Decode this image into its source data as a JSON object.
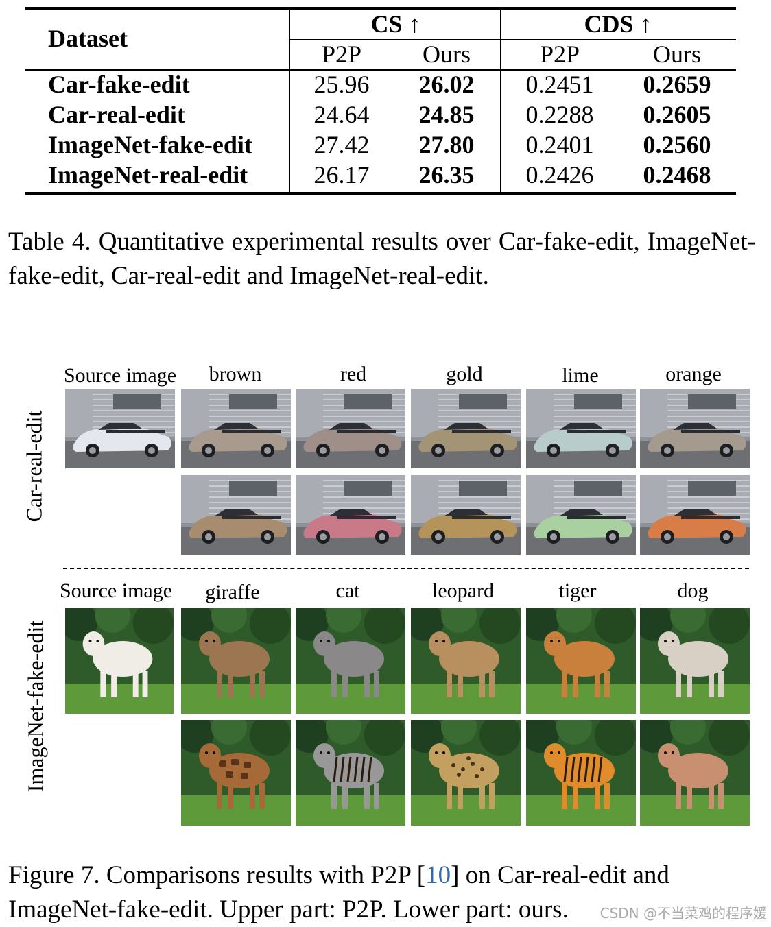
{
  "table": {
    "header_dataset": "Dataset",
    "group_cs": "CS ↑",
    "group_cds": "CDS ↑",
    "sub_p2p": "P2P",
    "sub_ours": "Ours",
    "rows": [
      {
        "dataset": "Car-fake-edit",
        "cs_p2p": "25.96",
        "cs_ours": "26.02",
        "cds_p2p": "0.2451",
        "cds_ours": "0.2659"
      },
      {
        "dataset": "Car-real-edit",
        "cs_p2p": "24.64",
        "cs_ours": "24.85",
        "cds_p2p": "0.2288",
        "cds_ours": "0.2605"
      },
      {
        "dataset": "ImageNet-fake-edit",
        "cs_p2p": "27.42",
        "cs_ours": "27.80",
        "cds_p2p": "0.2401",
        "cds_ours": "0.2560"
      },
      {
        "dataset": "ImageNet-real-edit",
        "cs_p2p": "26.17",
        "cs_ours": "26.35",
        "cds_p2p": "0.2426",
        "cds_ours": "0.2468"
      }
    ]
  },
  "table_caption": "Table 4.  Quantitative experimental results over Car-fake-edit, ImageNet-fake-edit, Car-real-edit and ImageNet-real-edit.",
  "figure": {
    "car_row_label": "Car-real-edit",
    "animal_row_label": "ImageNet-fake-edit",
    "car_columns": [
      "Source image",
      "brown",
      "red",
      "gold",
      "lime",
      "orange"
    ],
    "animal_columns": [
      "Source image",
      "giraffe",
      "cat",
      "leopard",
      "tiger",
      "dog"
    ],
    "colors": {
      "car_source": "#e4e8ee",
      "car_p2p": [
        "#a89a8c",
        "#a08e88",
        "#a49476",
        "#b8cccc",
        "#a49a8e"
      ],
      "car_ours": [
        "#a88c70",
        "#c87a88",
        "#b4945a",
        "#a8d0a0",
        "#d87c48"
      ],
      "animal_source": "#efede6",
      "animal_p2p": [
        "#9c7650",
        "#8a8888",
        "#b89060",
        "#c8803c",
        "#d8d0c4"
      ],
      "animal_ours": [
        "#a66a38",
        "#989898",
        "#c4a060",
        "#e08c2c",
        "#c89070"
      ]
    }
  },
  "figure_caption": {
    "part1": "Figure 7. Comparisons results with P2P [",
    "cite": "10",
    "part2": "] on Car-real-edit and ImageNet-fake-edit. Upper part: P2P. Lower part: ours."
  },
  "watermark": "CSDN @不当菜鸡的程序媛"
}
